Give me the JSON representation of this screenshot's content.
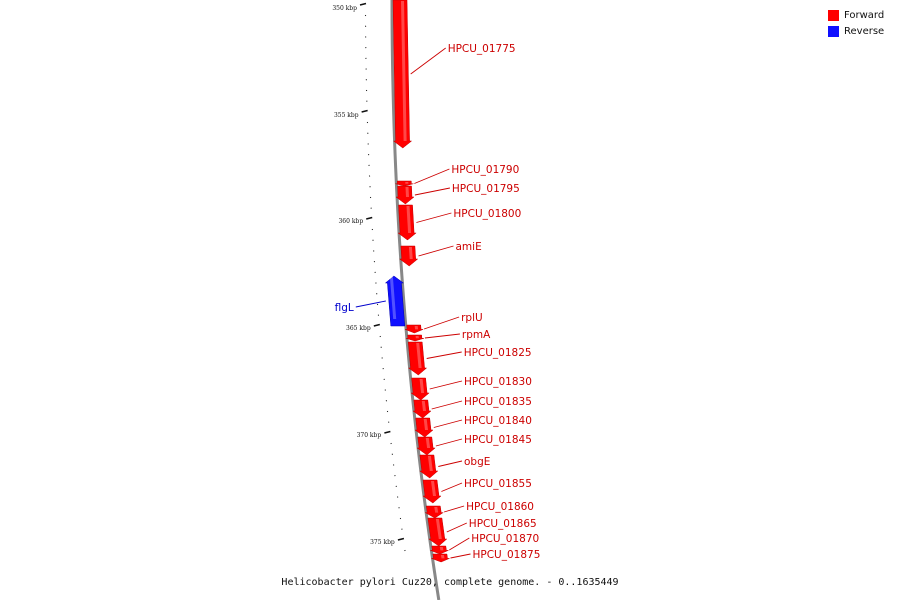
{
  "legend": {
    "forward": {
      "label": "Forward",
      "color": "#ff0000"
    },
    "reverse": {
      "label": "Reverse",
      "color": "#1010ff"
    }
  },
  "caption": "Helicobacter pylori Cuz20, complete genome. - 0..1635449",
  "colors": {
    "forward_label": "#cc0000",
    "reverse_label": "#0000cc",
    "backbone": "#888888"
  },
  "scale_ticks": [
    "350 kbp",
    "355 kbp",
    "360 kbp",
    "365 kbp",
    "370 kbp",
    "375 kbp"
  ],
  "genes": [
    {
      "name": "HPCU_01775",
      "strand": "forward"
    },
    {
      "name": "HPCU_01790",
      "strand": "forward"
    },
    {
      "name": "HPCU_01795",
      "strand": "forward"
    },
    {
      "name": "HPCU_01800",
      "strand": "forward"
    },
    {
      "name": "amiE",
      "strand": "forward"
    },
    {
      "name": "flgL",
      "strand": "reverse"
    },
    {
      "name": "rplU",
      "strand": "forward"
    },
    {
      "name": "rpmA",
      "strand": "forward"
    },
    {
      "name": "HPCU_01825",
      "strand": "forward"
    },
    {
      "name": "HPCU_01830",
      "strand": "forward"
    },
    {
      "name": "HPCU_01835",
      "strand": "forward"
    },
    {
      "name": "HPCU_01840",
      "strand": "forward"
    },
    {
      "name": "HPCU_01845",
      "strand": "forward"
    },
    {
      "name": "obgE",
      "strand": "forward"
    },
    {
      "name": "HPCU_01855",
      "strand": "forward"
    },
    {
      "name": "HPCU_01860",
      "strand": "forward"
    },
    {
      "name": "HPCU_01865",
      "strand": "forward"
    },
    {
      "name": "HPCU_01870",
      "strand": "forward"
    },
    {
      "name": "HPCU_01875",
      "strand": "forward"
    }
  ]
}
